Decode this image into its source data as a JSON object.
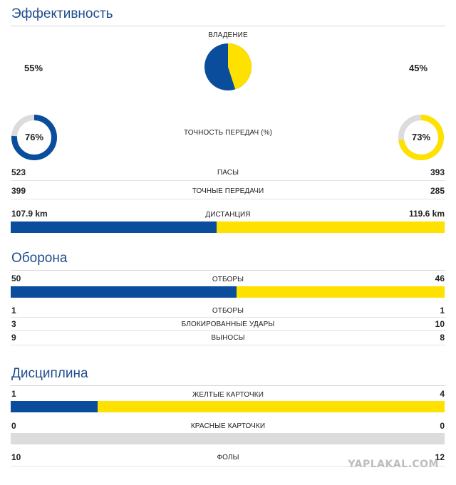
{
  "colors": {
    "team_a": "#0a4d9c",
    "team_b": "#ffe100",
    "empty": "#dcdcdc"
  },
  "efficiency": {
    "title": "Эффективность",
    "possession": {
      "label": "ВЛАДЕНИЕ",
      "left": "55%",
      "right": "45%",
      "left_value": 55,
      "right_value": 45
    },
    "pass_accuracy": {
      "label": "ТОЧНОСТЬ ПЕРЕДАЧ (%)",
      "left": "76%",
      "right": "73%",
      "left_value": 76,
      "right_value": 73
    },
    "rows": [
      {
        "label": "ПАСЫ",
        "left": "523",
        "right": "393"
      },
      {
        "label": "ТОЧНЫЕ ПЕРЕДАЧИ",
        "left": "399",
        "right": "285"
      }
    ],
    "distance": {
      "label": "ДИСТАНЦИЯ",
      "left": "107.9 km",
      "right": "119.6 km",
      "left_value": 107.9,
      "right_value": 119.6
    }
  },
  "defense": {
    "title": "Оборона",
    "tackles": {
      "label": "ОТБОРЫ",
      "left": "50",
      "right": "46",
      "left_value": 50,
      "right_value": 46
    },
    "rows": [
      {
        "label": "ОТБОРЫ",
        "left": "1",
        "right": "1"
      },
      {
        "label": "БЛОКИРОВАННЫЕ УДАРЫ",
        "left": "3",
        "right": "10"
      },
      {
        "label": "ВЫНОСЫ",
        "left": "9",
        "right": "8"
      }
    ]
  },
  "discipline": {
    "title": "Дисциплина",
    "yellow": {
      "label": "ЖЕЛТЫЕ КАРТОЧКИ",
      "left": "1",
      "right": "4",
      "left_value": 1,
      "right_value": 4
    },
    "red": {
      "label": "КРАСНЫЕ КАРТОЧКИ",
      "left": "0",
      "right": "0",
      "left_value": 0,
      "right_value": 0
    },
    "fouls": {
      "label": "ФОЛЫ",
      "left": "10",
      "right": "12"
    }
  },
  "watermark": "YAPLAKAL.COM"
}
